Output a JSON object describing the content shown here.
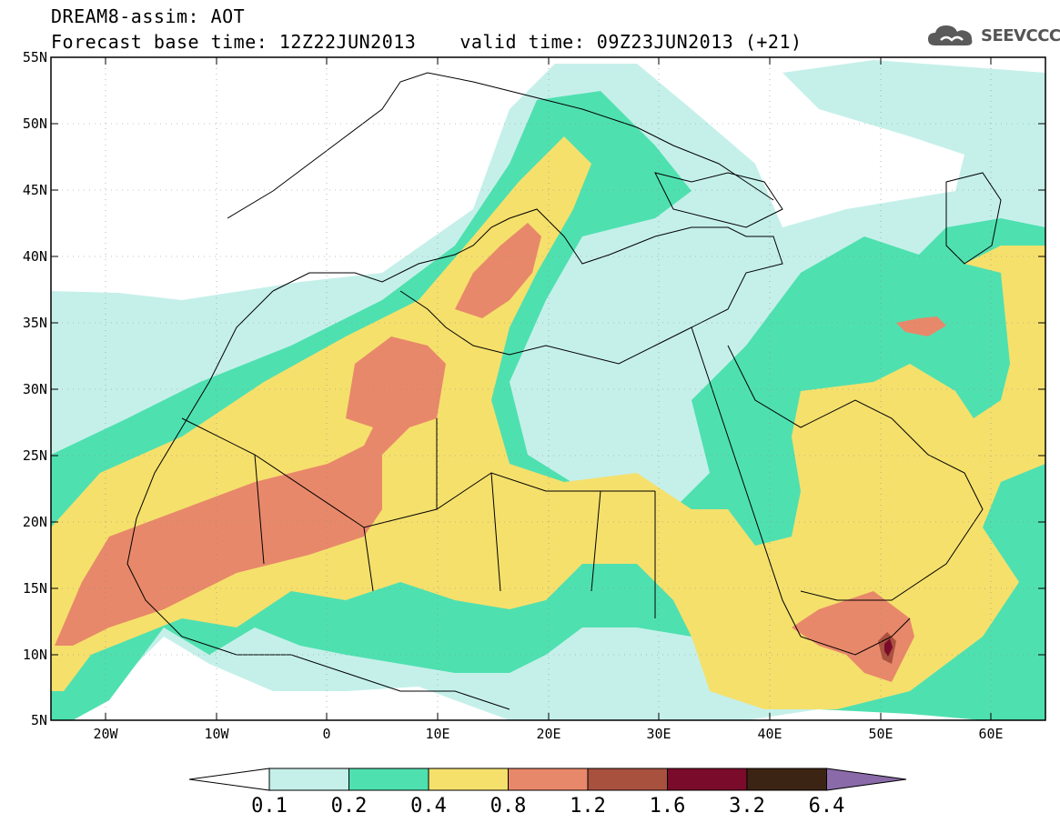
{
  "header": {
    "line1": "DREAM8-assim: AOT",
    "base_time": "Forecast base time: 12Z22JUN2013",
    "valid_time": "valid time: 09Z23JUN2013 (+21)"
  },
  "logo": {
    "text": "SEEVCCC",
    "icon": "cloud-icon"
  },
  "map": {
    "lat_labels": [
      "55N",
      "50N",
      "45N",
      "40N",
      "35N",
      "30N",
      "25N",
      "20N",
      "15N",
      "10N",
      "5N"
    ],
    "lon_labels": [
      "20W",
      "10W",
      "0",
      "10E",
      "20E",
      "30E",
      "40E",
      "50E",
      "60E"
    ]
  },
  "colorbar": {
    "colors": [
      "#ffffff",
      "#c5f0ea",
      "#4fe0b0",
      "#f5e06c",
      "#e8886a",
      "#a8513e",
      "#7a0b2a",
      "#3c2414",
      "#8a6aa8"
    ],
    "labels": [
      "0.1",
      "0.2",
      "0.4",
      "0.8",
      "1.2",
      "1.6",
      "3.2",
      "6.4"
    ]
  }
}
